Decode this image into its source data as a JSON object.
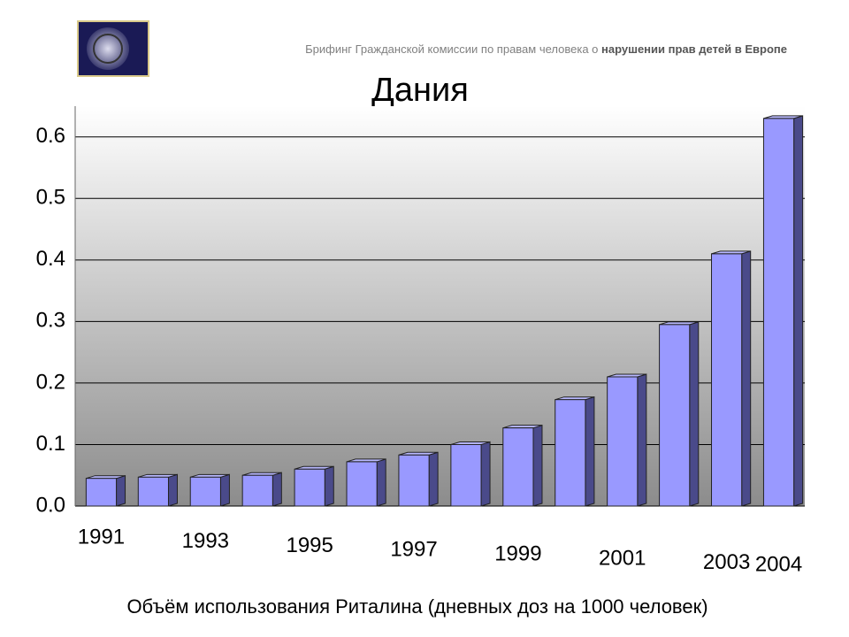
{
  "chart_data": {
    "type": "bar",
    "subtitle": [
      "Брифинг Гражданской комиссии по правам человека о",
      "нарушении прав детей в Европе"
    ],
    "title": "Дания",
    "x_label": "Объём использования Риталина (дневных доз на 1000 человек)",
    "categories": [
      "1991",
      null,
      "1993",
      null,
      "1995",
      null,
      "1997",
      null,
      "1999",
      null,
      "2001",
      null,
      "2003",
      "2004"
    ],
    "values": [
      0.045,
      0.047,
      0.047,
      0.05,
      0.06,
      0.072,
      0.083,
      0.1,
      0.127,
      0.173,
      0.21,
      0.295,
      0.41,
      0.63
    ],
    "color": "#9999ff",
    "ylim": [
      0,
      0.65
    ],
    "yticks": [
      {
        "value": 0,
        "label": "0.0"
      },
      0.1,
      0.2,
      0.3,
      0.4,
      0.5,
      0.6
    ],
    "grid": true
  }
}
